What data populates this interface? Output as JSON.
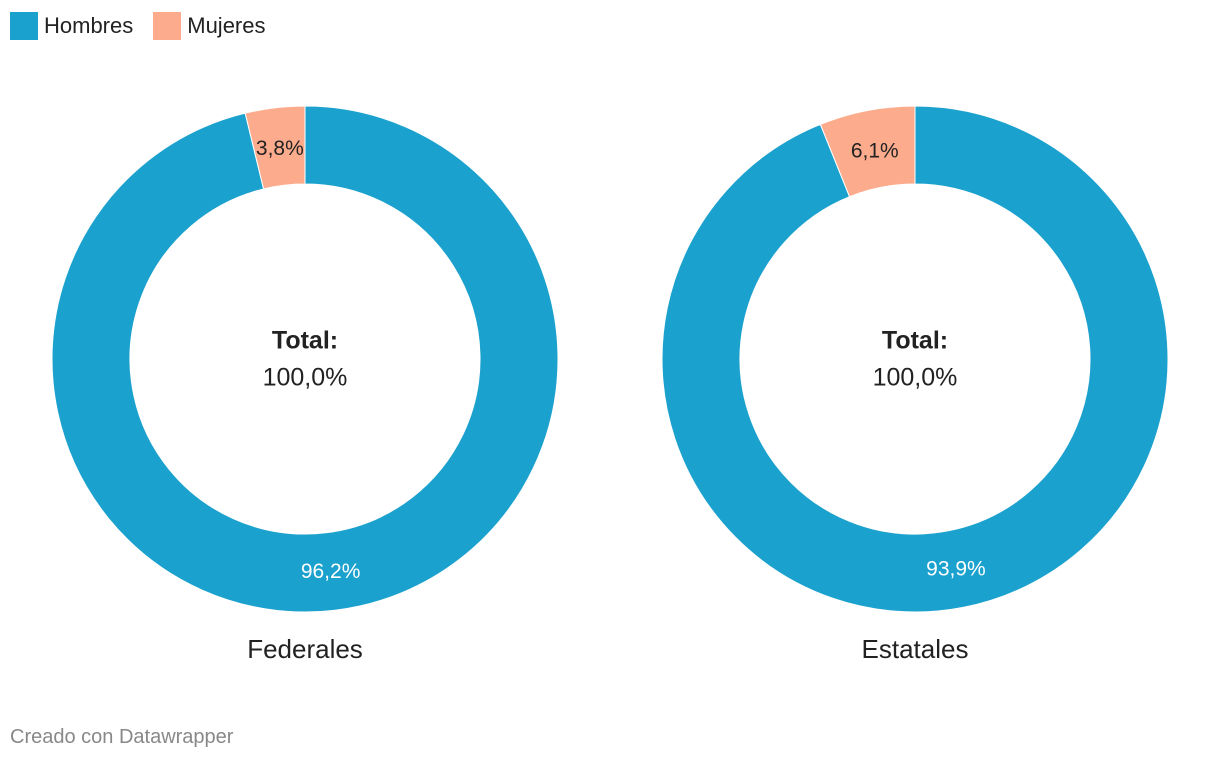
{
  "legend": {
    "items": [
      {
        "label": "Hombres",
        "color": "#1ba1ce"
      },
      {
        "label": "Mujeres",
        "color": "#fcab8c"
      }
    ]
  },
  "chart_data": [
    {
      "type": "pie",
      "title": "Federales",
      "categories": [
        "Hombres",
        "Mujeres"
      ],
      "values": [
        96.2,
        3.8
      ],
      "labels": [
        "96,2%",
        "3,8%"
      ],
      "center_label": "Total:",
      "center_value": "100,0%"
    },
    {
      "type": "pie",
      "title": "Estatales",
      "categories": [
        "Hombres",
        "Mujeres"
      ],
      "values": [
        93.9,
        6.1
      ],
      "labels": [
        "93,9%",
        "6,1%"
      ],
      "center_label": "Total:",
      "center_value": "100,0%"
    }
  ],
  "footer": {
    "credit": "Creado con Datawrapper"
  }
}
